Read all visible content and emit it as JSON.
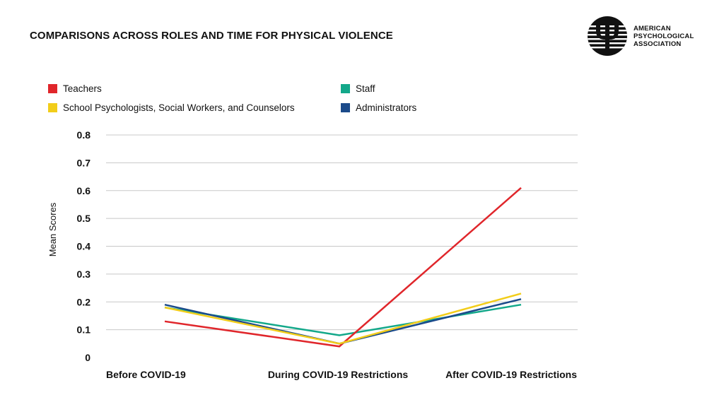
{
  "chart_data": {
    "type": "line",
    "title": "COMPARISONS ACROSS ROLES AND TIME FOR PHYSICAL VIOLENCE",
    "xlabel": "",
    "ylabel": "Mean Scores",
    "ylim": [
      0,
      0.8
    ],
    "yticks": [
      0,
      0.1,
      0.2,
      0.3,
      0.4,
      0.5,
      0.6,
      0.7,
      0.8
    ],
    "ytick_labels": [
      "0",
      "0.1",
      "0.2",
      "0.3",
      "0.4",
      "0.5",
      "0.6",
      "0.7",
      "0.8"
    ],
    "categories": [
      "Before COVID-19",
      "During COVID-19 Restrictions",
      "After COVID-19 Restrictions"
    ],
    "grid": true,
    "legend_position": "top",
    "series": [
      {
        "name": "Teachers",
        "color": "#e0262b",
        "values": [
          0.13,
          0.04,
          0.61
        ]
      },
      {
        "name": "Staff",
        "color": "#13a88a",
        "values": [
          0.18,
          0.08,
          0.19
        ]
      },
      {
        "name": "School Psychologists, Social Workers, and Counselors",
        "color": "#f2cd1a",
        "values": [
          0.18,
          0.05,
          0.23
        ]
      },
      {
        "name": "Administrators",
        "color": "#1b4a8a",
        "values": [
          0.19,
          0.05,
          0.21
        ]
      }
    ]
  },
  "logo": {
    "line1": "AMERICAN",
    "line2": "PSYCHOLOGICAL",
    "line3": "ASSOCIATION"
  }
}
